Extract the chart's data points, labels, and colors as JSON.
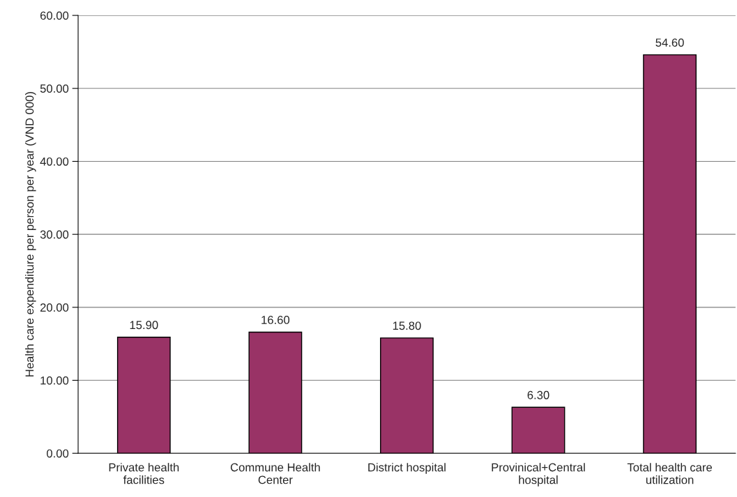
{
  "chart_data": {
    "type": "bar",
    "ylabel": "Health care expenditure per person per year (VND 000)",
    "categories": [
      "Private health\nfacilities",
      "Commune Health\nCenter",
      "District hospital",
      "Provinical+Central\nhospital",
      "Total health care\nutilization"
    ],
    "values": [
      15.9,
      16.6,
      15.8,
      6.3,
      54.6
    ],
    "value_labels": [
      "15.90",
      "16.60",
      "15.80",
      "6.30",
      "54.60"
    ],
    "color": "#993366",
    "ylim": [
      0,
      60
    ],
    "yticks": [
      {
        "value": 0,
        "label": "0.00"
      },
      {
        "value": 10,
        "label": "10.00"
      },
      {
        "value": 20,
        "label": "20.00"
      },
      {
        "value": 30,
        "label": "30.00"
      },
      {
        "value": 40,
        "label": "40.00"
      },
      {
        "value": 50,
        "label": "50.00"
      },
      {
        "value": 60,
        "label": "60.00"
      }
    ],
    "grid": "y"
  }
}
